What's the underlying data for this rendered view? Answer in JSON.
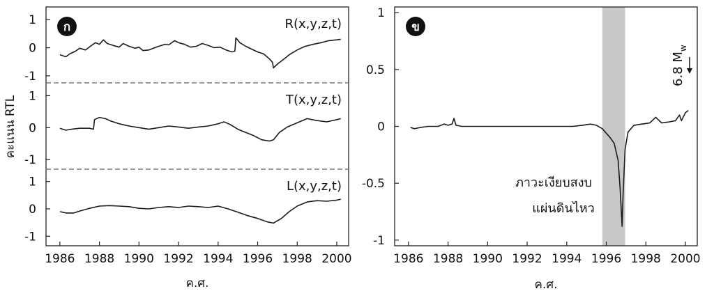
{
  "chart_data": [
    {
      "type": "line",
      "panel_badge": "ก",
      "ylabel": "คะแนน RTL",
      "xlabel": "ค.ศ.",
      "xlim": [
        1985.3,
        2000.6
      ],
      "x_ticks": [
        1986,
        1988,
        1990,
        1992,
        1994,
        1996,
        1998,
        2000
      ],
      "subplots": [
        {
          "name": "R(x,y,z,t)",
          "ylim": [
            -1.25,
            1.45
          ],
          "y_ticks": [
            1,
            0,
            -1
          ],
          "points": [
            [
              1986.0,
              -0.25
            ],
            [
              1986.3,
              -0.32
            ],
            [
              1986.5,
              -0.22
            ],
            [
              1986.8,
              -0.12
            ],
            [
              1987.0,
              -0.02
            ],
            [
              1987.3,
              -0.08
            ],
            [
              1987.6,
              0.08
            ],
            [
              1987.8,
              0.18
            ],
            [
              1988.0,
              0.12
            ],
            [
              1988.2,
              0.28
            ],
            [
              1988.4,
              0.15
            ],
            [
              1988.7,
              0.08
            ],
            [
              1989.0,
              0.02
            ],
            [
              1989.2,
              0.15
            ],
            [
              1989.5,
              0.05
            ],
            [
              1989.8,
              -0.02
            ],
            [
              1990.0,
              0.02
            ],
            [
              1990.2,
              -0.1
            ],
            [
              1990.5,
              -0.08
            ],
            [
              1990.8,
              0.0
            ],
            [
              1991.0,
              0.05
            ],
            [
              1991.3,
              0.12
            ],
            [
              1991.5,
              0.1
            ],
            [
              1991.8,
              0.25
            ],
            [
              1992.0,
              0.18
            ],
            [
              1992.3,
              0.12
            ],
            [
              1992.6,
              0.02
            ],
            [
              1992.9,
              0.05
            ],
            [
              1993.2,
              0.15
            ],
            [
              1993.5,
              0.08
            ],
            [
              1993.8,
              0.0
            ],
            [
              1994.1,
              0.02
            ],
            [
              1994.4,
              -0.08
            ],
            [
              1994.7,
              -0.15
            ],
            [
              1994.85,
              -0.12
            ],
            [
              1994.9,
              0.35
            ],
            [
              1995.1,
              0.18
            ],
            [
              1995.4,
              0.05
            ],
            [
              1995.7,
              -0.05
            ],
            [
              1996.0,
              -0.15
            ],
            [
              1996.3,
              -0.22
            ],
            [
              1996.6,
              -0.4
            ],
            [
              1996.75,
              -0.52
            ],
            [
              1996.8,
              -0.72
            ],
            [
              1997.0,
              -0.58
            ],
            [
              1997.3,
              -0.42
            ],
            [
              1997.6,
              -0.25
            ],
            [
              1998.0,
              -0.08
            ],
            [
              1998.4,
              0.05
            ],
            [
              1998.8,
              0.12
            ],
            [
              1999.2,
              0.18
            ],
            [
              1999.6,
              0.25
            ],
            [
              2000.0,
              0.28
            ],
            [
              2000.2,
              0.3
            ]
          ]
        },
        {
          "name": "T(x,y,z,t)",
          "ylim": [
            -1.3,
            1.4
          ],
          "y_ticks": [
            1,
            0,
            -1
          ],
          "points": [
            [
              1986.0,
              -0.02
            ],
            [
              1986.3,
              -0.08
            ],
            [
              1986.6,
              -0.05
            ],
            [
              1987.0,
              -0.02
            ],
            [
              1987.5,
              -0.02
            ],
            [
              1987.7,
              -0.05
            ],
            [
              1987.75,
              0.25
            ],
            [
              1988.0,
              0.32
            ],
            [
              1988.3,
              0.28
            ],
            [
              1988.6,
              0.2
            ],
            [
              1989.0,
              0.12
            ],
            [
              1989.5,
              0.05
            ],
            [
              1990.0,
              0.0
            ],
            [
              1990.5,
              -0.05
            ],
            [
              1991.0,
              0.0
            ],
            [
              1991.5,
              0.05
            ],
            [
              1992.0,
              0.02
            ],
            [
              1992.5,
              -0.02
            ],
            [
              1993.0,
              0.02
            ],
            [
              1993.5,
              0.05
            ],
            [
              1994.0,
              0.12
            ],
            [
              1994.3,
              0.18
            ],
            [
              1994.6,
              0.1
            ],
            [
              1995.0,
              -0.05
            ],
            [
              1995.4,
              -0.15
            ],
            [
              1995.8,
              -0.25
            ],
            [
              1996.2,
              -0.38
            ],
            [
              1996.6,
              -0.42
            ],
            [
              1996.8,
              -0.38
            ],
            [
              1997.1,
              -0.15
            ],
            [
              1997.5,
              0.02
            ],
            [
              1998.0,
              0.15
            ],
            [
              1998.5,
              0.28
            ],
            [
              1999.0,
              0.22
            ],
            [
              1999.5,
              0.18
            ],
            [
              2000.0,
              0.25
            ],
            [
              2000.2,
              0.28
            ]
          ]
        },
        {
          "name": "L(x,y,z,t)",
          "ylim": [
            -1.35,
            1.45
          ],
          "y_ticks": [
            1,
            0,
            -1
          ],
          "points": [
            [
              1986.0,
              -0.1
            ],
            [
              1986.3,
              -0.15
            ],
            [
              1986.7,
              -0.15
            ],
            [
              1987.0,
              -0.08
            ],
            [
              1987.5,
              0.02
            ],
            [
              1988.0,
              0.1
            ],
            [
              1988.5,
              0.12
            ],
            [
              1989.0,
              0.1
            ],
            [
              1989.5,
              0.08
            ],
            [
              1990.0,
              0.02
            ],
            [
              1990.5,
              0.0
            ],
            [
              1991.0,
              0.05
            ],
            [
              1991.5,
              0.08
            ],
            [
              1992.0,
              0.05
            ],
            [
              1992.5,
              0.1
            ],
            [
              1993.0,
              0.08
            ],
            [
              1993.5,
              0.05
            ],
            [
              1994.0,
              0.1
            ],
            [
              1994.5,
              0.0
            ],
            [
              1995.0,
              -0.12
            ],
            [
              1995.5,
              -0.25
            ],
            [
              1996.0,
              -0.35
            ],
            [
              1996.5,
              -0.48
            ],
            [
              1996.8,
              -0.52
            ],
            [
              1997.2,
              -0.35
            ],
            [
              1997.6,
              -0.1
            ],
            [
              1998.0,
              0.1
            ],
            [
              1998.5,
              0.25
            ],
            [
              1999.0,
              0.3
            ],
            [
              1999.5,
              0.28
            ],
            [
              2000.0,
              0.32
            ],
            [
              2000.2,
              0.35
            ]
          ]
        }
      ]
    },
    {
      "type": "line",
      "panel_badge": "ข",
      "xlabel": "ค.ศ.",
      "xlim": [
        1985.3,
        2000.6
      ],
      "ylim": [
        -1.05,
        1.05
      ],
      "x_ticks": [
        1986,
        1988,
        1990,
        1992,
        1994,
        1996,
        1998,
        2000
      ],
      "y_ticks": [
        1,
        0.5,
        0,
        -0.5,
        -1
      ],
      "y_tick_labels": [
        "1",
        "0.5",
        "0",
        "-0.5",
        "-1"
      ],
      "shaded_region": [
        1995.8,
        1996.95
      ],
      "annotation_lines": [
        "ภาวะเงียบสงบ",
        "แผ่นดินไหว"
      ],
      "event_label": "6.8 M",
      "event_label_subscript": "w",
      "points": [
        [
          1986.1,
          -0.01
        ],
        [
          1986.3,
          -0.02
        ],
        [
          1986.6,
          -0.01
        ],
        [
          1987.0,
          0.0
        ],
        [
          1987.5,
          0.0
        ],
        [
          1987.8,
          0.02
        ],
        [
          1988.0,
          0.01
        ],
        [
          1988.2,
          0.02
        ],
        [
          1988.3,
          0.07
        ],
        [
          1988.4,
          0.01
        ],
        [
          1988.7,
          0.0
        ],
        [
          1989.5,
          0.0
        ],
        [
          1990.5,
          0.0
        ],
        [
          1991.5,
          0.0
        ],
        [
          1992.5,
          0.0
        ],
        [
          1993.5,
          0.0
        ],
        [
          1994.3,
          0.0
        ],
        [
          1994.8,
          0.01
        ],
        [
          1995.2,
          0.02
        ],
        [
          1995.5,
          0.01
        ],
        [
          1995.8,
          -0.02
        ],
        [
          1996.0,
          -0.06
        ],
        [
          1996.2,
          -0.1
        ],
        [
          1996.4,
          -0.15
        ],
        [
          1996.6,
          -0.3
        ],
        [
          1996.7,
          -0.55
        ],
        [
          1996.8,
          -0.88
        ],
        [
          1996.85,
          -0.6
        ],
        [
          1996.95,
          -0.2
        ],
        [
          1997.1,
          -0.05
        ],
        [
          1997.4,
          0.01
        ],
        [
          1997.8,
          0.02
        ],
        [
          1998.2,
          0.03
        ],
        [
          1998.5,
          0.08
        ],
        [
          1998.8,
          0.03
        ],
        [
          1999.2,
          0.04
        ],
        [
          1999.5,
          0.05
        ],
        [
          1999.7,
          0.1
        ],
        [
          1999.8,
          0.05
        ],
        [
          2000.0,
          0.12
        ],
        [
          2000.15,
          0.14
        ]
      ]
    }
  ]
}
